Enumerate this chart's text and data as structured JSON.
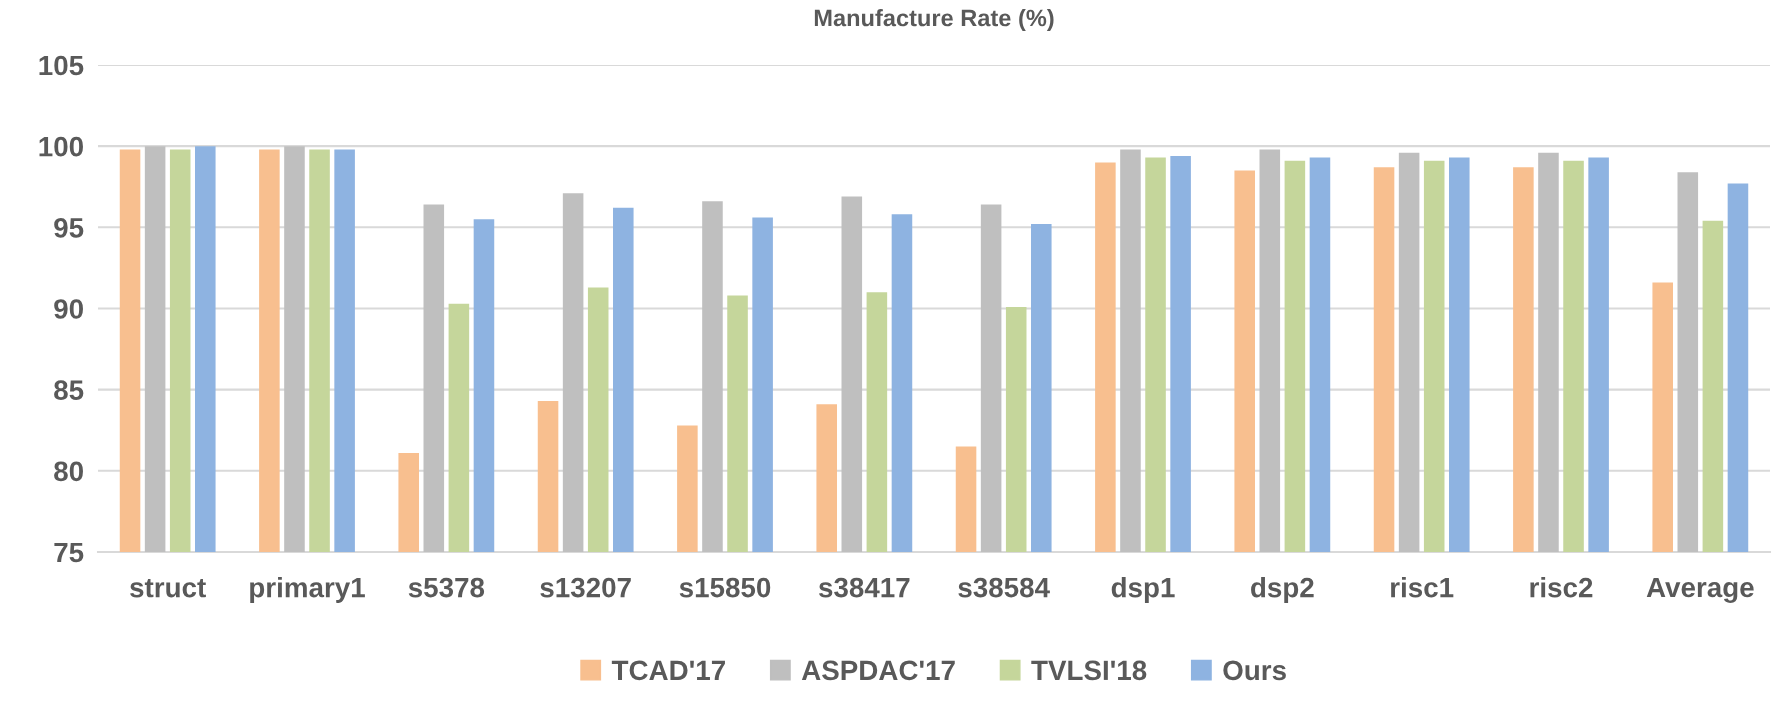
{
  "chart_data": {
    "type": "bar",
    "title": "Manufacture Rate (%)",
    "categories": [
      "struct",
      "primary1",
      "s5378",
      "s13207",
      "s15850",
      "s38417",
      "s38584",
      "dsp1",
      "dsp2",
      "risc1",
      "risc2",
      "Average"
    ],
    "series": [
      {
        "name": "TCAD'17",
        "color": "#f8bf8f",
        "values": [
          99.8,
          99.8,
          81.1,
          84.3,
          82.8,
          84.1,
          81.5,
          99.0,
          98.5,
          98.7,
          98.7,
          91.6
        ]
      },
      {
        "name": "ASPDAC'17",
        "color": "#bfbfbf",
        "values": [
          100,
          100,
          96.4,
          97.1,
          96.6,
          96.9,
          96.4,
          99.8,
          99.8,
          99.6,
          99.6,
          98.4
        ]
      },
      {
        "name": "TVLSI'18",
        "color": "#c5d69b",
        "values": [
          99.8,
          99.8,
          90.3,
          91.3,
          90.8,
          91.0,
          90.1,
          99.3,
          99.1,
          99.1,
          99.1,
          95.4
        ]
      },
      {
        "name": "Ours",
        "color": "#8eb3e1",
        "values": [
          100,
          99.8,
          95.5,
          96.2,
          95.6,
          95.8,
          95.2,
          99.4,
          99.3,
          99.3,
          99.3,
          97.7
        ]
      }
    ],
    "ylim": [
      75,
      105
    ],
    "yticks": [
      75,
      80,
      85,
      90,
      95,
      100,
      105
    ],
    "grid": "y",
    "legend": "bottom"
  }
}
